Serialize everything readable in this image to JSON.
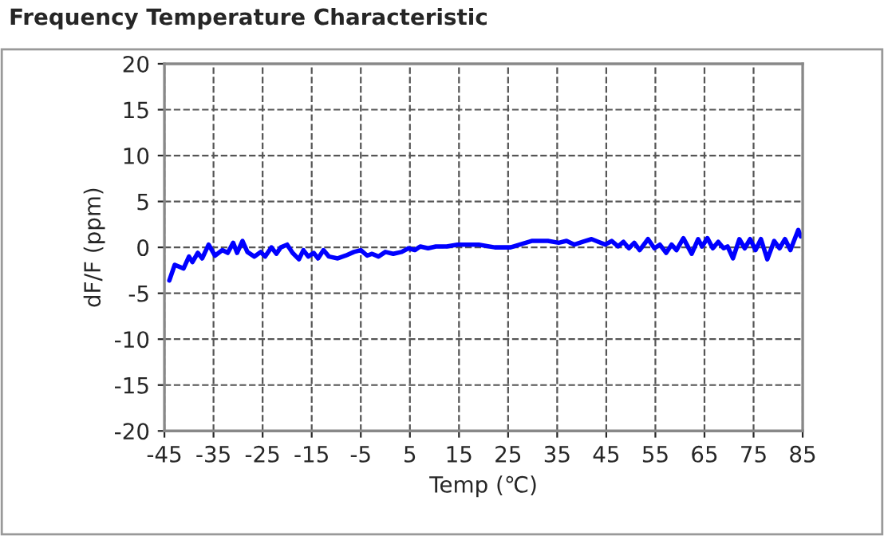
{
  "chart_data": {
    "type": "line",
    "title": "Frequency Temperature Characteristic",
    "xlabel": "Temp (℃)",
    "ylabel": "dF/F (ppm)",
    "xlim": [
      -45,
      85
    ],
    "xticks": [
      -45,
      -35,
      -25,
      -15,
      -5,
      5,
      15,
      25,
      35,
      45,
      55,
      65,
      75,
      85
    ],
    "ylim": [
      -20,
      20
    ],
    "yticks": [
      -20,
      -15,
      -10,
      -5,
      0,
      5,
      10,
      15,
      20
    ],
    "grid": true,
    "marker": "none",
    "line_style": "solid",
    "series": [
      {
        "color": "#0000ff",
        "x": [
          -44.0,
          -42.9,
          -41.1,
          -40.0,
          -39.3,
          -38.2,
          -37.3,
          -36.0,
          -34.7,
          -33.2,
          -32.1,
          -31.0,
          -30.2,
          -29.1,
          -28.1,
          -26.7,
          -25.4,
          -24.5,
          -23.2,
          -22.2,
          -21.3,
          -20.0,
          -18.9,
          -17.6,
          -16.7,
          -15.7,
          -14.6,
          -13.7,
          -12.6,
          -11.5,
          -9.7,
          -8.1,
          -6.4,
          -5.0,
          -3.7,
          -2.7,
          -1.4,
          0.0,
          1.6,
          3.3,
          4.7,
          6.0,
          7.1,
          8.7,
          10.3,
          12.5,
          14.7,
          16.8,
          19.0,
          22.3,
          25.5,
          29.8,
          33.1,
          35.3,
          36.9,
          38.5,
          40.2,
          42.0,
          43.4,
          44.8,
          46.1,
          47.4,
          48.5,
          49.6,
          50.7,
          51.8,
          53.5,
          54.8,
          55.9,
          57.2,
          58.3,
          59.3,
          60.7,
          62.4,
          63.7,
          64.5,
          65.6,
          66.7,
          67.8,
          68.9,
          69.7,
          70.8,
          72.1,
          73.2,
          74.3,
          75.4,
          76.5,
          77.8,
          79.2,
          80.3,
          81.4,
          82.5,
          84.1,
          84.6
        ],
        "values": [
          -3.6,
          -1.9,
          -2.3,
          -1.0,
          -1.6,
          -0.6,
          -1.2,
          0.3,
          -0.9,
          -0.3,
          -0.6,
          0.5,
          -0.6,
          0.7,
          -0.5,
          -1.0,
          -0.5,
          -1.0,
          0.0,
          -0.7,
          0.0,
          0.3,
          -0.6,
          -1.3,
          -0.3,
          -1.0,
          -0.6,
          -1.2,
          -0.3,
          -1.0,
          -1.2,
          -0.9,
          -0.5,
          -0.3,
          -0.9,
          -0.7,
          -1.0,
          -0.5,
          -0.7,
          -0.5,
          -0.1,
          -0.3,
          0.1,
          -0.1,
          0.1,
          0.1,
          0.3,
          0.3,
          0.3,
          0.0,
          0.0,
          0.7,
          0.7,
          0.5,
          0.7,
          0.3,
          0.6,
          0.9,
          0.6,
          0.3,
          0.7,
          0.1,
          0.6,
          -0.1,
          0.5,
          -0.3,
          0.9,
          -0.1,
          0.3,
          -0.6,
          0.3,
          -0.3,
          1.0,
          -0.7,
          0.9,
          0.1,
          1.0,
          -0.1,
          0.6,
          -0.1,
          0.1,
          -1.2,
          0.9,
          -0.1,
          0.9,
          -0.3,
          0.9,
          -1.3,
          0.7,
          -0.1,
          0.9,
          -0.3,
          1.9,
          1.2
        ]
      }
    ]
  }
}
